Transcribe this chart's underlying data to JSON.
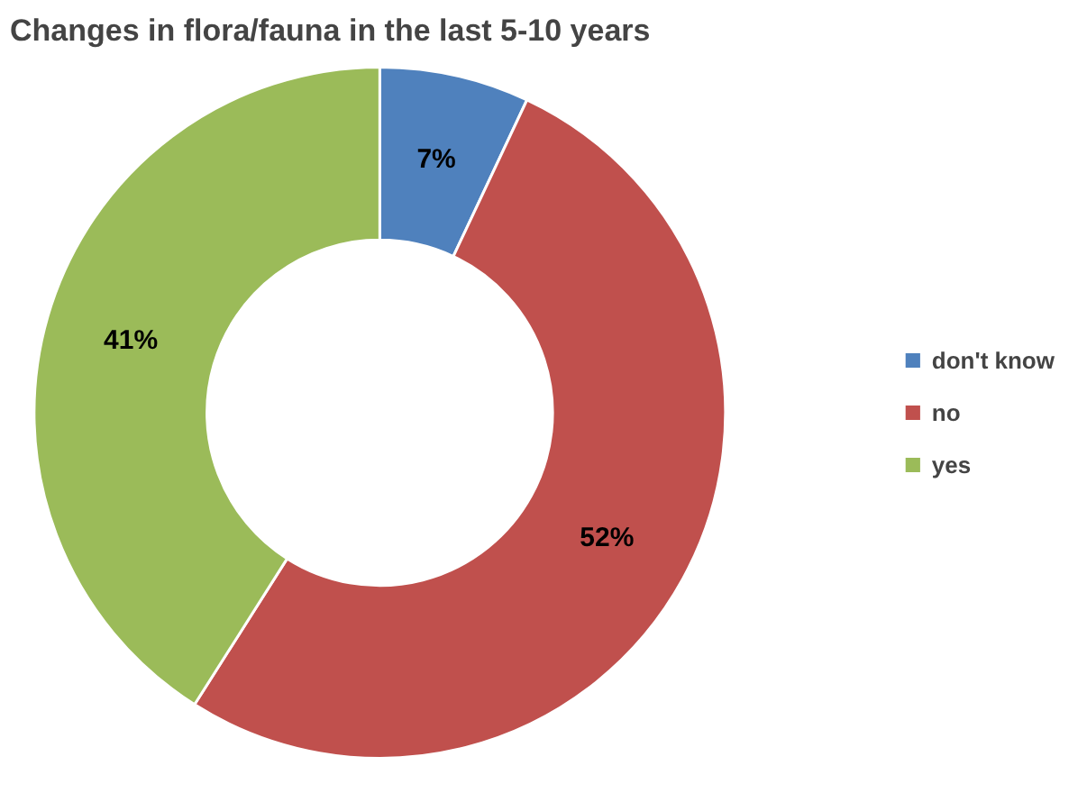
{
  "chart_data": {
    "type": "donut",
    "title": "Changes in flora/fauna in the last 5-10 years",
    "categories": [
      "don't know",
      "no",
      "yes"
    ],
    "values": [
      7,
      52,
      41
    ],
    "colors": [
      "#4f81bd",
      "#c0504d",
      "#9bbb59"
    ],
    "value_labels": [
      "7%",
      "52%",
      "41%"
    ],
    "legend": "right"
  }
}
